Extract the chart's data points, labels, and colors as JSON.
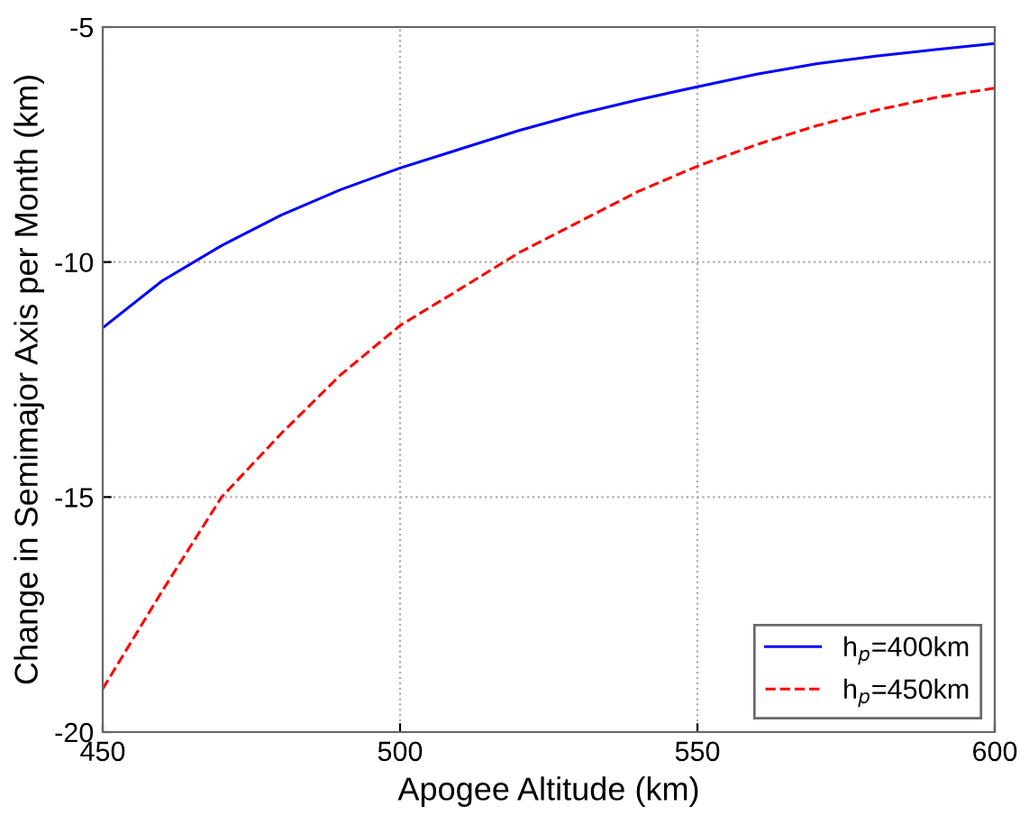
{
  "chart_data": {
    "type": "line",
    "xlabel": "Apogee Altitude (km)",
    "ylabel": "Change in Semimajor Axis per Month (km)",
    "x": [
      450,
      460,
      470,
      480,
      490,
      500,
      510,
      520,
      530,
      540,
      550,
      560,
      570,
      580,
      590,
      600
    ],
    "series": [
      {
        "name": "h$_{p}$=400km",
        "color": "#0000ff",
        "line_style": "solid",
        "values": [
          -11.4,
          -10.4,
          -9.65,
          -9.0,
          -8.46,
          -8.0,
          -7.6,
          -7.2,
          -6.85,
          -6.55,
          -6.27,
          -6.0,
          -5.78,
          -5.62,
          -5.48,
          -5.35
        ]
      },
      {
        "name": "h$_{p}$=450km",
        "color": "#ff0000",
        "line_style": "dashed",
        "values": [
          -19.08,
          -17.0,
          -15.0,
          -13.65,
          -12.4,
          -11.35,
          -10.58,
          -9.8,
          -9.15,
          -8.5,
          -7.96,
          -7.5,
          -7.1,
          -6.77,
          -6.5,
          -6.3
        ]
      }
    ],
    "xlim": [
      450,
      600
    ],
    "xticks": [
      450,
      500,
      550,
      600
    ],
    "ylim": [
      -20,
      -5
    ],
    "yticks": [
      -20,
      -15,
      -10,
      -5
    ],
    "grid": true,
    "legend": "bottom right"
  }
}
